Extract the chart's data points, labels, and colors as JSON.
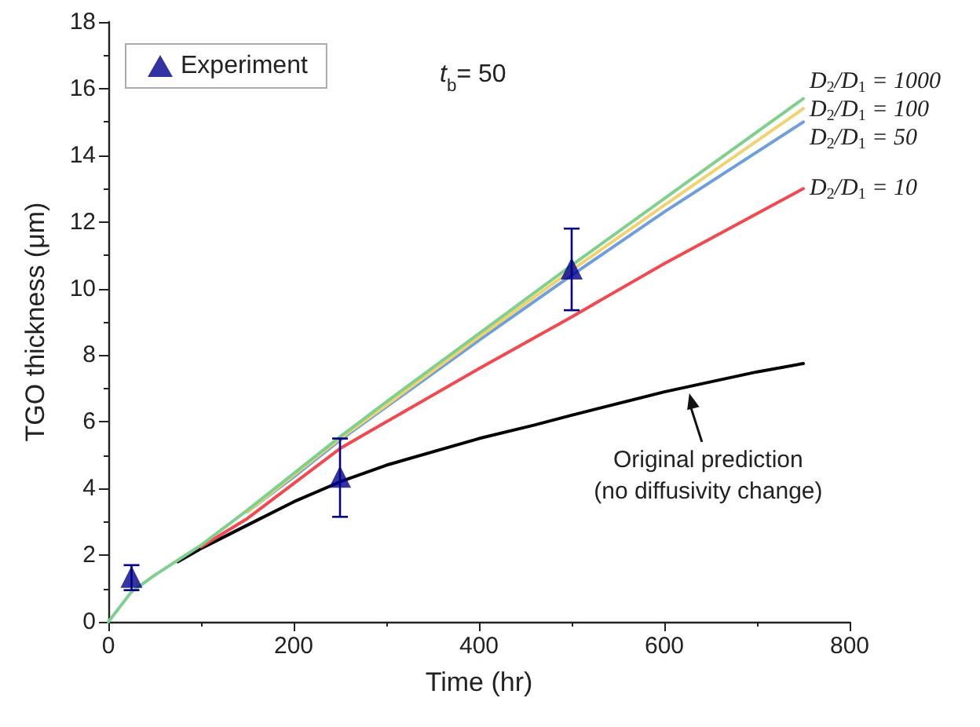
{
  "chart_data": {
    "type": "line",
    "xlabel": "Time (hr)",
    "ylabel": "TGO thickness (μm)",
    "xlim": [
      0,
      800
    ],
    "xticks": [
      0,
      200,
      400,
      600,
      800
    ],
    "ylim": [
      0,
      18
    ],
    "yticks": [
      0,
      2,
      4,
      6,
      8,
      10,
      12,
      14,
      16,
      18
    ],
    "grid": false,
    "legend": "top left",
    "marker": "none",
    "line_style": "solid",
    "annotations": [
      "t$_{b}$= 50",
      {
        "text": "Original prediction\n(no diffusivity change)",
        "x": 627,
        "y": 7.0
      }
    ],
    "series": [
      {
        "name": "D$_{2}$/D$_{1}$ = 1000",
        "color": "#7fd08c",
        "x": [
          0,
          25,
          50,
          75,
          100,
          150,
          200,
          250,
          300,
          400,
          500,
          600,
          750
        ],
        "values": [
          0,
          0.9,
          1.4,
          1.85,
          2.3,
          3.35,
          4.45,
          5.55,
          6.6,
          8.65,
          10.7,
          12.7,
          15.7
        ]
      },
      {
        "name": "D$_{2}$/D$_{1}$ = 100",
        "color": "#f2d26e",
        "x": [
          150,
          200,
          250,
          300,
          400,
          500,
          600,
          750
        ],
        "values": [
          3.3,
          4.4,
          5.5,
          6.5,
          8.55,
          10.55,
          12.5,
          15.4
        ]
      },
      {
        "name": "D$_{2}$/D$_{1}$ = 50",
        "color": "#6e9fdc",
        "x": [
          150,
          200,
          250,
          300,
          400,
          500,
          600,
          750
        ],
        "values": [
          3.3,
          4.35,
          5.45,
          6.45,
          8.45,
          10.4,
          12.3,
          15.0
        ]
      },
      {
        "name": "D$_{2}$/D$_{1}$ = 10",
        "color": "#f04a50",
        "x": [
          100,
          150,
          200,
          250,
          300,
          400,
          500,
          600,
          750
        ],
        "values": [
          2.25,
          3.1,
          4.15,
          5.2,
          6.0,
          7.6,
          9.15,
          10.75,
          13.0
        ]
      },
      {
        "color": "#000000",
        "x": [
          75,
          100,
          150,
          200,
          250,
          300,
          400,
          459,
          500,
          600,
          700,
          750
        ],
        "values": [
          1.8,
          2.2,
          2.9,
          3.6,
          4.2,
          4.7,
          5.5,
          5.9,
          6.2,
          6.9,
          7.5,
          7.75
        ]
      },
      {
        "name": "Experiment",
        "type": "scatter",
        "marker": "triangle",
        "color": "#00008b",
        "x": [
          25,
          250,
          500
        ],
        "values": [
          1.35,
          4.35,
          10.6
        ],
        "errors": [
          [
            0.95,
            1.7
          ],
          [
            3.15,
            5.5
          ],
          [
            9.35,
            11.8
          ]
        ]
      }
    ]
  }
}
